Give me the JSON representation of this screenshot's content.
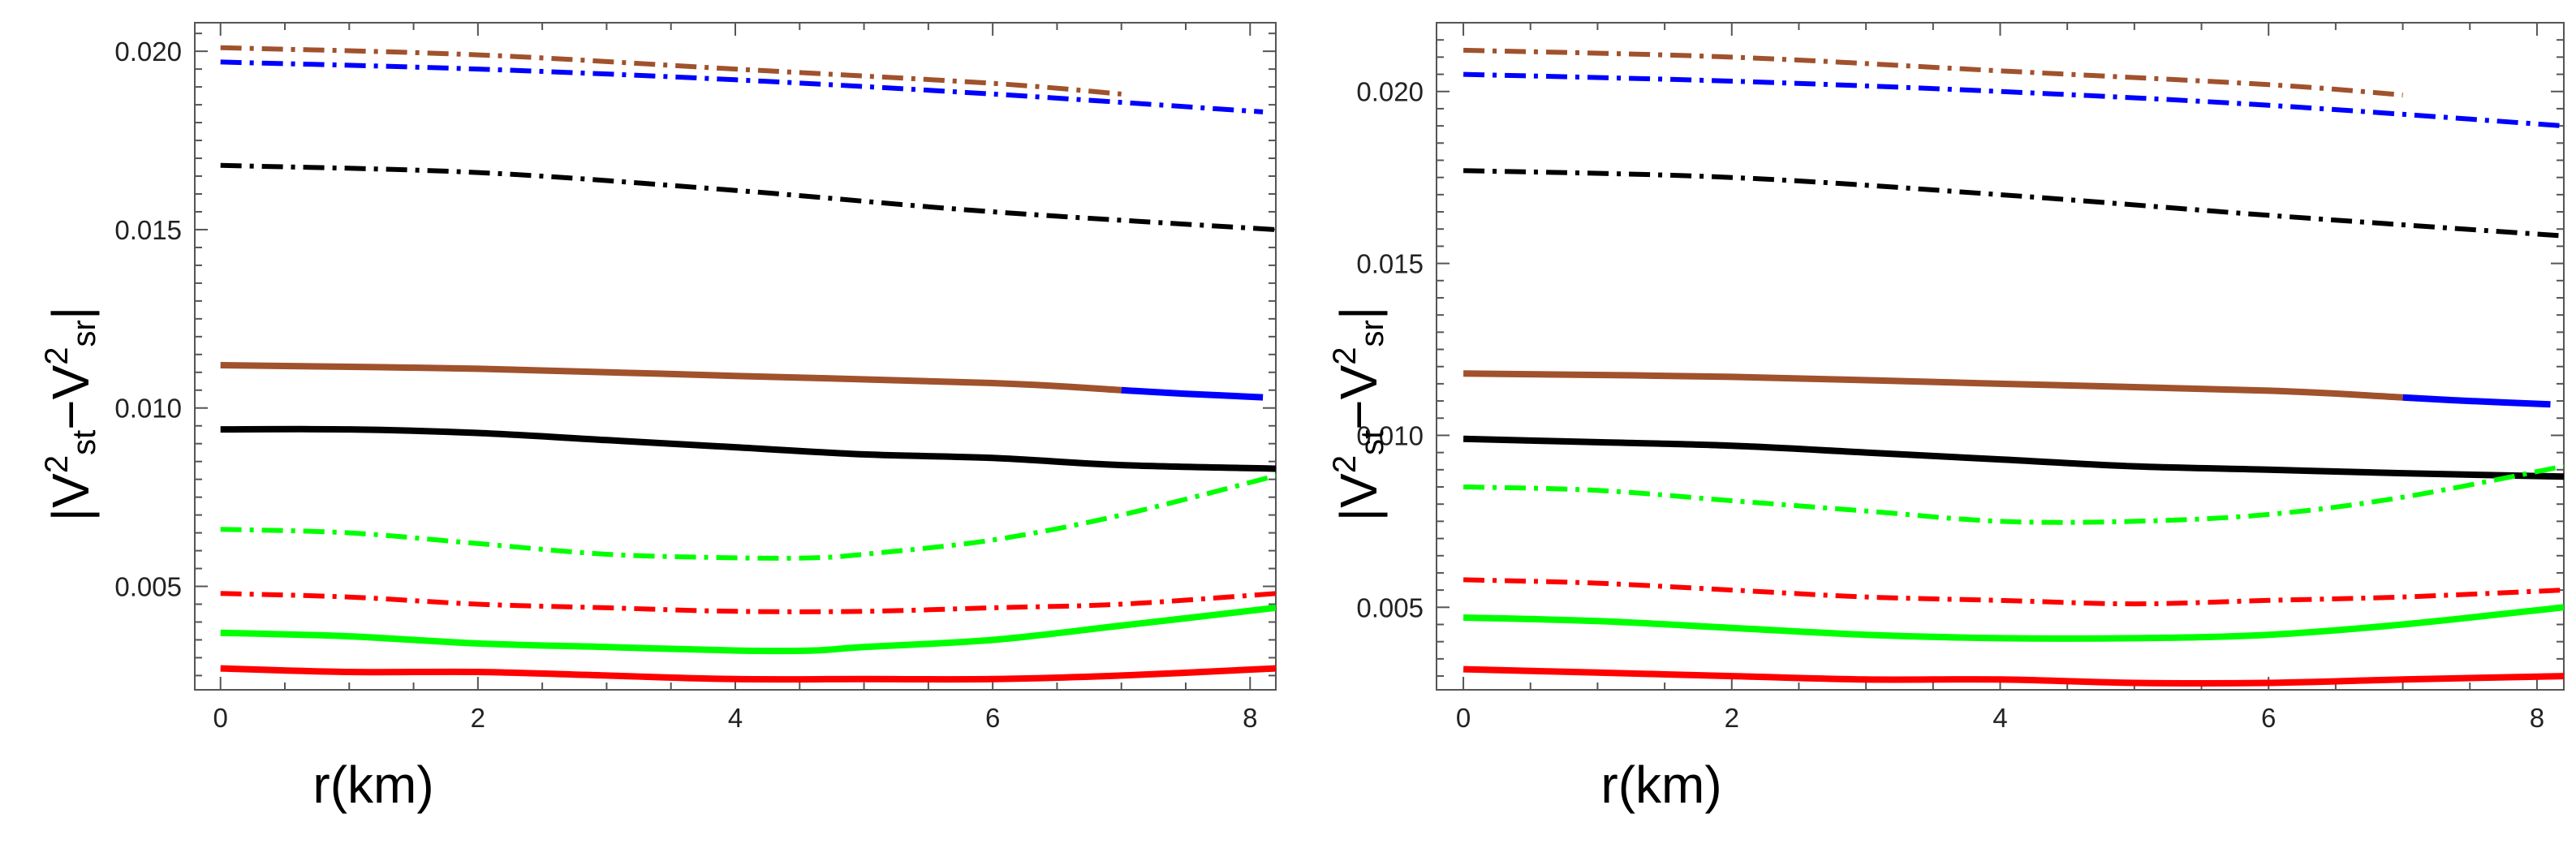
{
  "chart_data": [
    {
      "type": "line",
      "panel": "left",
      "xlabel": "r(km)",
      "ylabel": {
        "bar_left": "|",
        "v1": "V",
        "exp1": "2",
        "sub1": "st",
        "minus": "−",
        "v2": "V",
        "exp2": "2",
        "sub2": "sr",
        "bar_right": "|"
      },
      "xlim": [
        -0.2,
        8.2
      ],
      "ylim": [
        0.0021,
        0.0208
      ],
      "xticks": [
        0,
        2,
        4,
        6,
        8
      ],
      "xtick_labels": [
        "0",
        "2",
        "4",
        "6",
        "8"
      ],
      "yticks": [
        0.005,
        0.01,
        0.015,
        0.02
      ],
      "ytick_labels": [
        "0.005",
        "0.010",
        "0.015",
        "0.020"
      ],
      "series": [
        {
          "name": "brown-dashdot",
          "color": "#A0522D",
          "style": "dashdot",
          "x": [
            0,
            2,
            4,
            6,
            7.0
          ],
          "y": [
            0.0201,
            0.0199,
            0.0195,
            0.0191,
            0.0188
          ]
        },
        {
          "name": "blue-dashdot",
          "color": "#0000FF",
          "style": "dashdot",
          "x": [
            0,
            2,
            4,
            6,
            8.1
          ],
          "y": [
            0.0197,
            0.0195,
            0.0192,
            0.0188,
            0.0183
          ]
        },
        {
          "name": "black-dashdot",
          "color": "#000000",
          "style": "dashdot",
          "x": [
            0,
            2,
            4,
            6,
            8.2
          ],
          "y": [
            0.0168,
            0.0166,
            0.0161,
            0.0155,
            0.015
          ]
        },
        {
          "name": "brown-solid",
          "color": "#A0522D",
          "style": "solid",
          "x": [
            0,
            2,
            4,
            6,
            7.0
          ],
          "y": [
            0.0112,
            0.0111,
            0.0109,
            0.0107,
            0.0105
          ]
        },
        {
          "name": "blue-solid",
          "color": "#0000FF",
          "style": "solid",
          "x": [
            7.0,
            7.5,
            8.1
          ],
          "y": [
            0.0105,
            0.0104,
            0.0103
          ]
        },
        {
          "name": "black-solid",
          "color": "#000000",
          "style": "solid",
          "x": [
            0,
            1,
            2,
            3,
            4,
            5,
            6,
            7,
            8.2
          ],
          "y": [
            0.0094,
            0.0094,
            0.0093,
            0.0091,
            0.0089,
            0.0087,
            0.0086,
            0.0084,
            0.0083
          ]
        },
        {
          "name": "green-dashdot",
          "color": "#00FF00",
          "style": "dashdot",
          "x": [
            0,
            1,
            2,
            3,
            4,
            4.6,
            5,
            6,
            7,
            8.2
          ],
          "y": [
            0.0066,
            0.0065,
            0.0062,
            0.0059,
            0.0058,
            0.0058,
            0.0059,
            0.0063,
            0.007,
            0.0081
          ]
        },
        {
          "name": "red-dashdot",
          "color": "#FF0000",
          "style": "dashdot",
          "x": [
            0,
            1,
            2,
            3,
            4,
            5,
            6,
            7,
            8.2
          ],
          "y": [
            0.0048,
            0.0047,
            0.0045,
            0.0044,
            0.0043,
            0.0043,
            0.0044,
            0.0045,
            0.0048
          ]
        },
        {
          "name": "green-solid",
          "color": "#00FF00",
          "style": "solid",
          "x": [
            0,
            1,
            2,
            3,
            4,
            4.6,
            5,
            6,
            7,
            8.2
          ],
          "y": [
            0.0037,
            0.0036,
            0.0034,
            0.0033,
            0.0032,
            0.0032,
            0.0033,
            0.0035,
            0.0039,
            0.0044
          ]
        },
        {
          "name": "red-solid",
          "color": "#FF0000",
          "style": "solid",
          "x": [
            0,
            1,
            2,
            3,
            4,
            5,
            6,
            7,
            8.2
          ],
          "y": [
            0.0027,
            0.0026,
            0.0026,
            0.0025,
            0.0024,
            0.0024,
            0.0024,
            0.0025,
            0.0027
          ]
        }
      ]
    },
    {
      "type": "line",
      "panel": "right",
      "xlabel": "r(km)",
      "ylabel": {
        "bar_left": "|",
        "v1": "V",
        "exp1": "2",
        "sub1": "st",
        "minus": "−",
        "v2": "V",
        "exp2": "2",
        "sub2": "sr",
        "bar_right": "|"
      },
      "xlim": [
        -0.2,
        8.2
      ],
      "ylim": [
        0.0026,
        0.022
      ],
      "xticks": [
        0,
        2,
        4,
        6,
        8
      ],
      "xtick_labels": [
        "0",
        "2",
        "4",
        "6",
        "8"
      ],
      "yticks": [
        0.005,
        0.01,
        0.015,
        0.02
      ],
      "ytick_labels": [
        "0.005",
        "0.010",
        "0.015",
        "0.020"
      ],
      "series": [
        {
          "name": "brown-dashdot",
          "color": "#A0522D",
          "style": "dashdot",
          "x": [
            0,
            2,
            4,
            6,
            7.0
          ],
          "y": [
            0.0212,
            0.021,
            0.0206,
            0.0202,
            0.0199
          ]
        },
        {
          "name": "blue-dashdot",
          "color": "#0000FF",
          "style": "dashdot",
          "x": [
            0,
            2,
            4,
            6,
            8.2
          ],
          "y": [
            0.0205,
            0.0203,
            0.02,
            0.0196,
            0.019
          ]
        },
        {
          "name": "black-dashdot",
          "color": "#000000",
          "style": "dashdot",
          "x": [
            0,
            2,
            4,
            6,
            8.2
          ],
          "y": [
            0.0177,
            0.0175,
            0.017,
            0.0164,
            0.0158
          ]
        },
        {
          "name": "brown-solid",
          "color": "#A0522D",
          "style": "solid",
          "x": [
            0,
            2,
            4,
            6,
            7.0
          ],
          "y": [
            0.0118,
            0.0117,
            0.0115,
            0.0113,
            0.0111
          ]
        },
        {
          "name": "blue-solid",
          "color": "#0000FF",
          "style": "solid",
          "x": [
            7.0,
            7.5,
            8.1
          ],
          "y": [
            0.0111,
            0.011,
            0.0109
          ]
        },
        {
          "name": "black-solid",
          "color": "#000000",
          "style": "solid",
          "x": [
            0,
            1,
            2,
            3,
            4,
            5,
            6,
            7,
            8.2
          ],
          "y": [
            0.0099,
            0.0098,
            0.0097,
            0.0095,
            0.0093,
            0.0091,
            0.009,
            0.0089,
            0.0088
          ]
        },
        {
          "name": "green-dashdot",
          "color": "#00FF00",
          "style": "dashdot",
          "x": [
            0,
            1,
            2,
            3,
            4,
            5,
            6,
            7,
            8.2
          ],
          "y": [
            0.0085,
            0.0084,
            0.0081,
            0.0078,
            0.0075,
            0.0075,
            0.0077,
            0.0082,
            0.0091
          ]
        },
        {
          "name": "red-dashdot",
          "color": "#FF0000",
          "style": "dashdot",
          "x": [
            0,
            1,
            2,
            3,
            4,
            5,
            6,
            7,
            8.2
          ],
          "y": [
            0.0058,
            0.0057,
            0.0055,
            0.0053,
            0.0052,
            0.0051,
            0.0052,
            0.0053,
            0.0055
          ]
        },
        {
          "name": "green-solid",
          "color": "#00FF00",
          "style": "solid",
          "x": [
            0,
            1,
            2,
            3,
            4,
            5,
            6,
            7,
            8.2
          ],
          "y": [
            0.0047,
            0.0046,
            0.0044,
            0.0042,
            0.0041,
            0.0041,
            0.0042,
            0.0045,
            0.005
          ]
        },
        {
          "name": "red-solid",
          "color": "#FF0000",
          "style": "solid",
          "x": [
            0,
            1,
            2,
            3,
            4,
            5,
            6,
            7,
            8.2
          ],
          "y": [
            0.0032,
            0.0031,
            0.003,
            0.0029,
            0.0029,
            0.0028,
            0.0028,
            0.0029,
            0.003
          ]
        }
      ]
    }
  ]
}
